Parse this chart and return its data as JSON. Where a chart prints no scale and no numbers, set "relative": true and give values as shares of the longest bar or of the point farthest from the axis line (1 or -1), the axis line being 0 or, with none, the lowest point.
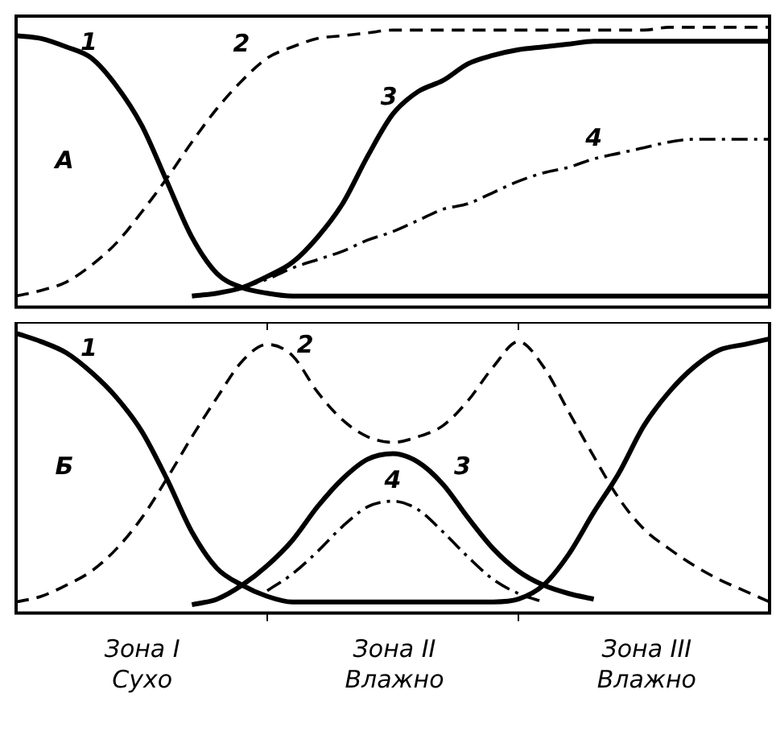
{
  "chart_data": [
    {
      "type": "line",
      "title": "А",
      "relative": true,
      "legend": false,
      "categories": [
        null,
        null,
        null,
        null,
        null,
        null,
        null,
        null,
        null,
        null,
        null,
        null,
        null,
        null,
        null,
        null,
        null,
        null,
        null,
        null,
        null,
        null,
        null,
        null,
        null,
        null,
        null,
        null,
        null,
        null,
        null
      ],
      "series": [
        {
          "name": "1",
          "color": "#000000",
          "line_style": "solid",
          "values": [
            0.97,
            0.96,
            0.93,
            0.89,
            0.79,
            0.65,
            0.45,
            0.25,
            0.12,
            0.07,
            0.05,
            0.04,
            0.04,
            0.04,
            0.04,
            0.04,
            0.04,
            0.04,
            0.04,
            0.04,
            0.04,
            0.04,
            0.04,
            0.04,
            0.04,
            0.04,
            0.04,
            0.04,
            0.04,
            0.04,
            0.04
          ]
        },
        {
          "name": "2",
          "color": "#000000",
          "line_style": "dashed",
          "values": [
            0.04,
            0.06,
            0.09,
            0.15,
            0.23,
            0.34,
            0.46,
            0.59,
            0.71,
            0.81,
            0.89,
            0.93,
            0.96,
            0.97,
            0.98,
            0.99,
            0.99,
            0.99,
            0.99,
            0.99,
            0.99,
            0.99,
            0.99,
            0.99,
            0.99,
            0.99,
            1,
            1,
            1,
            1,
            1
          ]
        },
        {
          "name": "3",
          "color": "#000000",
          "line_style": "solid",
          "values": [
            null,
            null,
            null,
            null,
            null,
            null,
            null,
            0.04,
            0.05,
            0.07,
            0.11,
            0.16,
            0.25,
            0.37,
            0.54,
            0.69,
            0.77,
            0.81,
            0.87,
            0.9,
            0.92,
            0.93,
            0.94,
            0.95,
            0.95,
            0.95,
            0.95,
            0.95,
            0.95,
            0.95,
            0.95
          ]
        },
        {
          "name": "4",
          "color": "#000000",
          "line_style": "dotted",
          "values": [
            null,
            null,
            null,
            null,
            null,
            null,
            null,
            null,
            null,
            0.07,
            0.1,
            0.14,
            0.17,
            0.2,
            0.24,
            0.27,
            0.31,
            0.35,
            0.37,
            0.41,
            0.45,
            0.48,
            0.5,
            0.53,
            0.55,
            0.57,
            0.59,
            0.6,
            0.6,
            0.6,
            0.6
          ]
        }
      ]
    },
    {
      "type": "line",
      "title": "Б",
      "relative": true,
      "legend": false,
      "categories": [
        null,
        null,
        null,
        null,
        null,
        null,
        null,
        null,
        null,
        null,
        null,
        null,
        null,
        null,
        null,
        null,
        null,
        null,
        null,
        null,
        null,
        null,
        null,
        null,
        null,
        null,
        null,
        null,
        null,
        null,
        null
      ],
      "annotations": [
        "Зона I",
        "Сухо",
        "Зона II",
        "Влажно",
        "Зона III",
        "Влажно"
      ],
      "series": [
        {
          "name": "1",
          "color": "#000000",
          "line_style": "solid",
          "values": [
            1,
            0.97,
            0.93,
            0.86,
            0.77,
            0.65,
            0.48,
            0.29,
            0.16,
            0.1,
            0.06,
            0.04,
            0.04,
            0.04,
            0.04,
            0.04,
            0.04,
            0.04,
            0.04,
            0.04,
            0.05,
            0.1,
            0.21,
            0.36,
            0.5,
            0.67,
            0.79,
            0.88,
            0.94,
            0.96,
            0.98
          ]
        },
        {
          "name": "2",
          "color": "#000000",
          "line_style": "dashed",
          "values": [
            0.04,
            0.06,
            0.1,
            0.15,
            0.23,
            0.34,
            0.48,
            0.63,
            0.77,
            0.9,
            0.96,
            0.92,
            0.79,
            0.69,
            0.63,
            0.61,
            0.63,
            0.67,
            0.76,
            0.88,
            0.97,
            0.88,
            0.72,
            0.56,
            0.41,
            0.3,
            0.23,
            0.17,
            0.12,
            0.08,
            0.04
          ]
        },
        {
          "name": "3",
          "color": "#000000",
          "line_style": "solid",
          "values": [
            null,
            null,
            null,
            null,
            null,
            null,
            null,
            0.03,
            0.05,
            0.1,
            0.17,
            0.26,
            0.38,
            0.48,
            0.55,
            0.57,
            0.54,
            0.46,
            0.34,
            0.23,
            0.15,
            0.1,
            0.07,
            0.05,
            null,
            null,
            null,
            null,
            null,
            null,
            null
          ]
        },
        {
          "name": "4",
          "color": "#000000",
          "line_style": "dotted",
          "values": [
            null,
            null,
            null,
            null,
            null,
            null,
            null,
            null,
            null,
            null,
            0.08,
            0.14,
            0.22,
            0.31,
            0.38,
            0.4,
            0.37,
            0.29,
            0.2,
            0.12,
            0.07,
            0.04,
            null,
            null,
            null,
            null,
            null,
            null,
            null,
            null,
            null
          ]
        }
      ]
    }
  ]
}
